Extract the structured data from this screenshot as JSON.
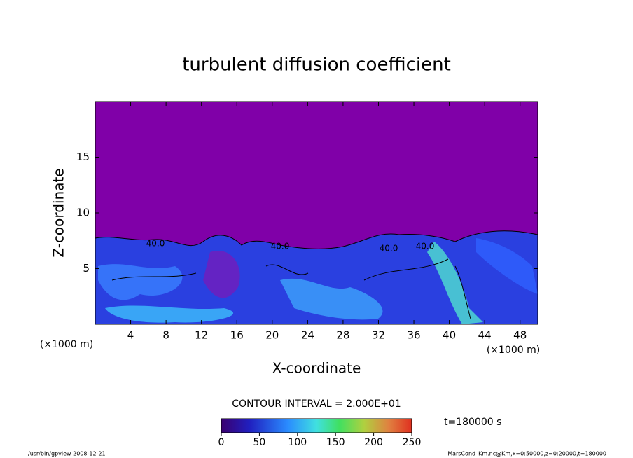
{
  "chart_data": {
    "type": "contour",
    "title": "turbulent diffusion coefficient",
    "xlabel": "X-coordinate",
    "ylabel": "Z-coordinate",
    "x_unit": "(×1000 m)",
    "xlim": [
      0,
      50
    ],
    "ylim": [
      0,
      20
    ],
    "xticks": [
      4,
      8,
      12,
      16,
      20,
      24,
      28,
      32,
      36,
      40,
      44,
      48
    ],
    "yticks": [
      5,
      10,
      15
    ],
    "grid": false,
    "background_color": "#8000a8",
    "contour_labels": [
      "40.0",
      "40.0",
      "40.0",
      "40.0"
    ],
    "contour_interval": "CONTOUR INTERVAL = 2.000E+01",
    "colorbar_lim": [
      0,
      250
    ],
    "colorbar_ticks": [
      0,
      50,
      100,
      150,
      200,
      250
    ],
    "time_label": "t=180000 s",
    "footer_left": "/usr/bin/gpview  2008-12-21",
    "footer_right": "MarsCond_Km.nc@Km,x=0:50000,z=0:20000,t=180000"
  }
}
